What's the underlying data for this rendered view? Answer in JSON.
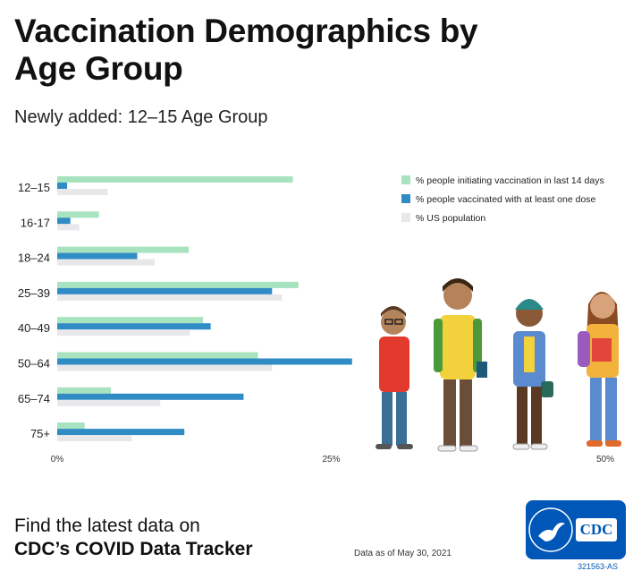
{
  "title": "Vaccination Demographics by Age Group",
  "subtitle": "Newly added: 12–15 Age Group",
  "chart_data": {
    "type": "bar",
    "orientation": "horizontal",
    "categories": [
      "12–15",
      "16-17",
      "18–24",
      "25–39",
      "40–49",
      "50–64",
      "65–74",
      "75+"
    ],
    "series": [
      {
        "name": "% people initiating vaccination in last 14 days",
        "color": "#a6e3be",
        "values": [
          21.5,
          3.8,
          12.0,
          22.0,
          13.3,
          18.3,
          4.9,
          2.5
        ]
      },
      {
        "name": "% people vaccinated with at least one dose",
        "color": "#2f8cc4",
        "values": [
          0.9,
          1.2,
          7.3,
          19.6,
          14.0,
          26.9,
          17.0,
          11.6
        ]
      },
      {
        "name": "% US population",
        "color": "#e8e8ea",
        "values": [
          4.6,
          2.0,
          8.9,
          20.5,
          12.1,
          19.6,
          9.4,
          6.8
        ]
      }
    ],
    "xlim": [
      0,
      50
    ],
    "xticks": [
      "0%",
      "25%",
      "50%"
    ],
    "legend": "top-right"
  },
  "footer": {
    "line1": "Find the latest data on",
    "line2": "CDC’s COVID Data Tracker",
    "data_note": "Data as of May 30, 2021"
  },
  "logo": {
    "text": "CDC"
  },
  "code": "321563-AS"
}
